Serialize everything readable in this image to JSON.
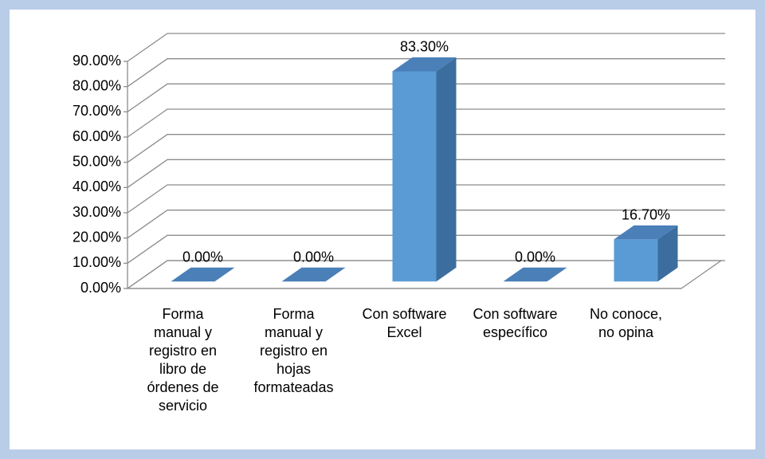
{
  "chart_data": {
    "type": "bar3d",
    "categories": [
      "Forma manual y registro en libro de órdenes de servicio",
      "Forma manual y registro en hojas formateadas",
      "Con software Excel",
      "Con software específico",
      "No conoce, no opina"
    ],
    "values": [
      0,
      0,
      83.3,
      0,
      16.7
    ],
    "value_labels": [
      "0.00%",
      "0.00%",
      "83.30%",
      "0.00%",
      "16.70%"
    ],
    "color": "#5b9bd5",
    "ylim": [
      0,
      90
    ],
    "yticks": [
      {
        "value": 0,
        "label": "0.00%"
      },
      {
        "value": 10,
        "label": "10.00%"
      },
      {
        "value": 20,
        "label": "20.00%"
      },
      {
        "value": 30,
        "label": "30.00%"
      },
      {
        "value": 40,
        "label": "40.00%"
      },
      {
        "value": 50,
        "label": "50.00%"
      },
      {
        "value": 60,
        "label": "60.00%"
      },
      {
        "value": 70,
        "label": "70.00%"
      },
      {
        "value": 80,
        "label": "80.00%"
      },
      {
        "value": 90,
        "label": "90.00%"
      }
    ],
    "grid": true
  }
}
